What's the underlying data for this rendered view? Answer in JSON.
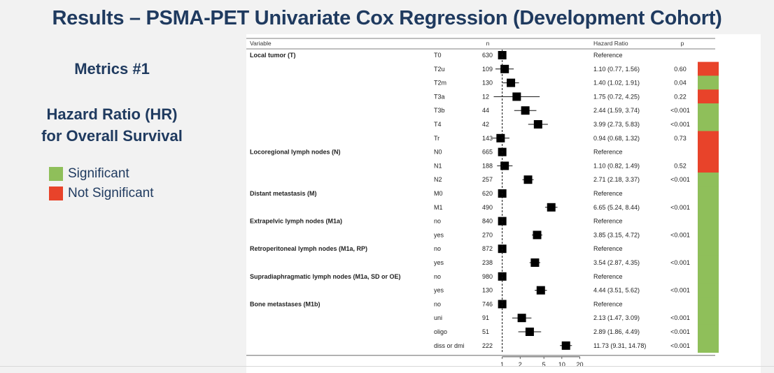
{
  "slide": {
    "title": "Results – PSMA-PET Univariate Cox Regression (Development Cohort)",
    "metrics_label": "Metrics #1",
    "hr_title_line1": "Hazard Ratio (HR)",
    "hr_title_line2": "for Overall Survival"
  },
  "legend": {
    "significant": {
      "label": "Significant",
      "color": "#8fbf5a"
    },
    "not_significant": {
      "label": "Not Significant",
      "color": "#e8432a"
    }
  },
  "chart_data": {
    "type": "forest",
    "columns": {
      "variable": "Variable",
      "n": "n",
      "hazard_ratio": "Hazard Ratio",
      "p": "p"
    },
    "x_scale": "log",
    "x_ticks": [
      1,
      2,
      5,
      10,
      20
    ],
    "xlim": [
      0.75,
      22
    ],
    "reference_line": 1,
    "groups": [
      {
        "label": "Local tumor (T)",
        "rows": [
          {
            "level": "T0",
            "n": "630",
            "hr": 1,
            "lo": null,
            "hi": null,
            "hr_text": "Reference",
            "p": "",
            "sig": null
          },
          {
            "level": "T2u",
            "n": "109",
            "hr": 1.1,
            "lo": 0.77,
            "hi": 1.56,
            "hr_text": "1.10 (0.77, 1.56)",
            "p": "0.60",
            "sig": false
          },
          {
            "level": "T2m",
            "n": "130",
            "hr": 1.4,
            "lo": 1.02,
            "hi": 1.91,
            "hr_text": "1.40 (1.02, 1.91)",
            "p": "0.04",
            "sig": true
          },
          {
            "level": "T3a",
            "n": "12",
            "hr": 1.75,
            "lo": 0.72,
            "hi": 4.25,
            "hr_text": "1.75 (0.72, 4.25)",
            "p": "0.22",
            "sig": false
          },
          {
            "level": "T3b",
            "n": "44",
            "hr": 2.44,
            "lo": 1.59,
            "hi": 3.74,
            "hr_text": "2.44 (1.59, 3.74)",
            "p": "<0.001",
            "sig": true
          },
          {
            "level": "T4",
            "n": "42",
            "hr": 3.99,
            "lo": 2.73,
            "hi": 5.83,
            "hr_text": "3.99 (2.73, 5.83)",
            "p": "<0.001",
            "sig": true
          },
          {
            "level": "Tr",
            "n": "143",
            "hr": 0.94,
            "lo": 0.68,
            "hi": 1.32,
            "hr_text": "0.94 (0.68, 1.32)",
            "p": "0.73",
            "sig": false
          }
        ]
      },
      {
        "label": "Locoregional lymph nodes (N)",
        "rows": [
          {
            "level": "N0",
            "n": "665",
            "hr": 1,
            "lo": null,
            "hi": null,
            "hr_text": "Reference",
            "p": "",
            "sig": false
          },
          {
            "level": "N1",
            "n": "188",
            "hr": 1.1,
            "lo": 0.82,
            "hi": 1.49,
            "hr_text": "1.10 (0.82, 1.49)",
            "p": "0.52",
            "sig": false
          },
          {
            "level": "N2",
            "n": "257",
            "hr": 2.71,
            "lo": 2.18,
            "hi": 3.37,
            "hr_text": "2.71 (2.18, 3.37)",
            "p": "<0.001",
            "sig": true
          }
        ]
      },
      {
        "label": "Distant metastasis (M)",
        "rows": [
          {
            "level": "M0",
            "n": "620",
            "hr": 1,
            "lo": null,
            "hi": null,
            "hr_text": "Reference",
            "p": "",
            "sig": true
          },
          {
            "level": "M1",
            "n": "490",
            "hr": 6.65,
            "lo": 5.24,
            "hi": 8.44,
            "hr_text": "6.65 (5.24, 8.44)",
            "p": "<0.001",
            "sig": true
          }
        ]
      },
      {
        "label": "Extrapelvic lymph nodes (M1a)",
        "rows": [
          {
            "level": "no",
            "n": "840",
            "hr": 1,
            "lo": null,
            "hi": null,
            "hr_text": "Reference",
            "p": "",
            "sig": true
          },
          {
            "level": "yes",
            "n": "270",
            "hr": 3.85,
            "lo": 3.15,
            "hi": 4.72,
            "hr_text": "3.85 (3.15, 4.72)",
            "p": "<0.001",
            "sig": true
          }
        ]
      },
      {
        "label": "Retroperitoneal lymph nodes (M1a, RP)",
        "rows": [
          {
            "level": "no",
            "n": "872",
            "hr": 1,
            "lo": null,
            "hi": null,
            "hr_text": "Reference",
            "p": "",
            "sig": true
          },
          {
            "level": "yes",
            "n": "238",
            "hr": 3.54,
            "lo": 2.87,
            "hi": 4.35,
            "hr_text": "3.54 (2.87, 4.35)",
            "p": "<0.001",
            "sig": true
          }
        ]
      },
      {
        "label": "Supradiaphragmatic lymph nodes (M1a, SD or OE)",
        "rows": [
          {
            "level": "no",
            "n": "980",
            "hr": 1,
            "lo": null,
            "hi": null,
            "hr_text": "Reference",
            "p": "",
            "sig": true
          },
          {
            "level": "yes",
            "n": "130",
            "hr": 4.44,
            "lo": 3.51,
            "hi": 5.62,
            "hr_text": "4.44 (3.51, 5.62)",
            "p": "<0.001",
            "sig": true
          }
        ]
      },
      {
        "label": "Bone metastases (M1b)",
        "rows": [
          {
            "level": "no",
            "n": "746",
            "hr": 1,
            "lo": null,
            "hi": null,
            "hr_text": "Reference",
            "p": "",
            "sig": true
          },
          {
            "level": "uni",
            "n": "91",
            "hr": 2.13,
            "lo": 1.47,
            "hi": 3.09,
            "hr_text": "2.13 (1.47, 3.09)",
            "p": "<0.001",
            "sig": true
          },
          {
            "level": "oligo",
            "n": "51",
            "hr": 2.89,
            "lo": 1.86,
            "hi": 4.49,
            "hr_text": "2.89 (1.86, 4.49)",
            "p": "<0.001",
            "sig": true
          },
          {
            "level": "diss or dmi",
            "n": "222",
            "hr": 11.73,
            "lo": 9.31,
            "hi": 14.78,
            "hr_text": "11.73 (9.31, 14.78)",
            "p": "<0.001",
            "sig": true
          }
        ]
      }
    ]
  }
}
